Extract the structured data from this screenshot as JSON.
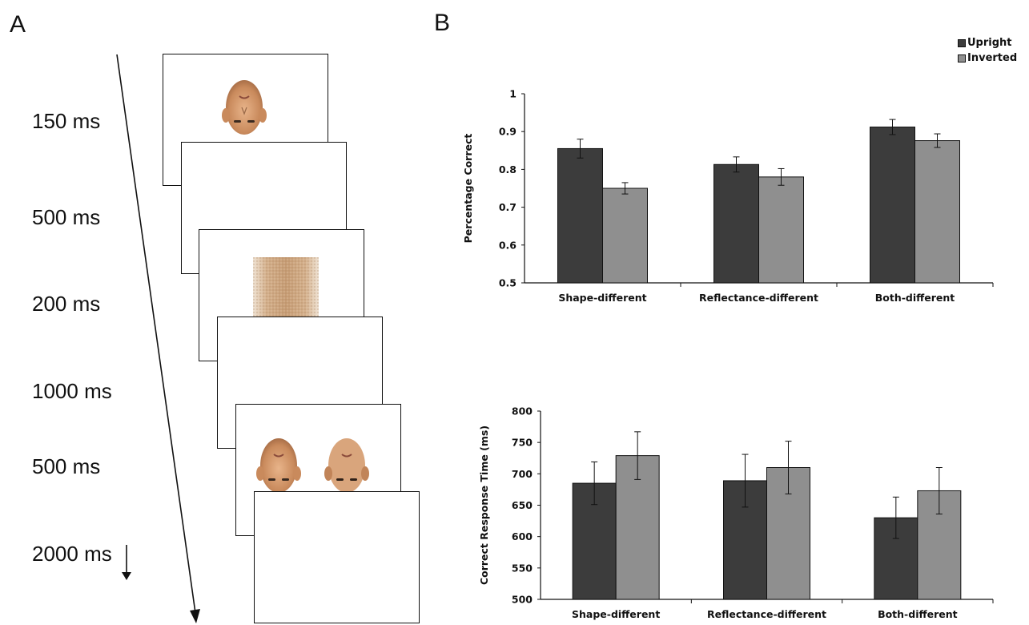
{
  "panel_a": {
    "letter": "A",
    "steps": [
      "150 ms",
      "500 ms",
      "200 ms",
      "1000 ms",
      "500 ms",
      "2000 ms"
    ],
    "frames": [
      "upright-face-inverted",
      "blank",
      "noise-mask",
      "blank",
      "face-pair",
      "blank"
    ]
  },
  "panel_b": {
    "letter": "B",
    "legend": [
      {
        "name": "Upright",
        "color": "#3c3c3c"
      },
      {
        "name": "Inverted",
        "color": "#8f8f8f"
      }
    ]
  },
  "chart_data": [
    {
      "type": "bar",
      "categories": [
        "Shape-different",
        "Reflectance-different",
        "Both-different"
      ],
      "series": [
        {
          "name": "Upright",
          "values": [
            0.855,
            0.813,
            0.912
          ],
          "errors": [
            0.025,
            0.02,
            0.02
          ]
        },
        {
          "name": "Inverted",
          "values": [
            0.75,
            0.78,
            0.876
          ],
          "errors": [
            0.015,
            0.022,
            0.018
          ]
        }
      ],
      "ylabel": "Percentage Correct",
      "ylim": [
        0.5,
        1
      ],
      "yticks": [
        "0.5",
        "0.6",
        "0.7",
        "0.8",
        "0.9",
        "1"
      ],
      "grid": false
    },
    {
      "type": "bar",
      "categories": [
        "Shape-different",
        "Reflectance-different",
        "Both-different"
      ],
      "series": [
        {
          "name": "Upright",
          "values": [
            685,
            689,
            630
          ],
          "errors": [
            34,
            42,
            33
          ]
        },
        {
          "name": "Inverted",
          "values": [
            729,
            710,
            673
          ],
          "errors": [
            38,
            42,
            37
          ]
        }
      ],
      "ylabel": "Correct Response Time (ms)",
      "ylim": [
        500,
        800
      ],
      "yticks": [
        "500",
        "550",
        "600",
        "650",
        "700",
        "750",
        "800"
      ],
      "grid": false
    }
  ]
}
